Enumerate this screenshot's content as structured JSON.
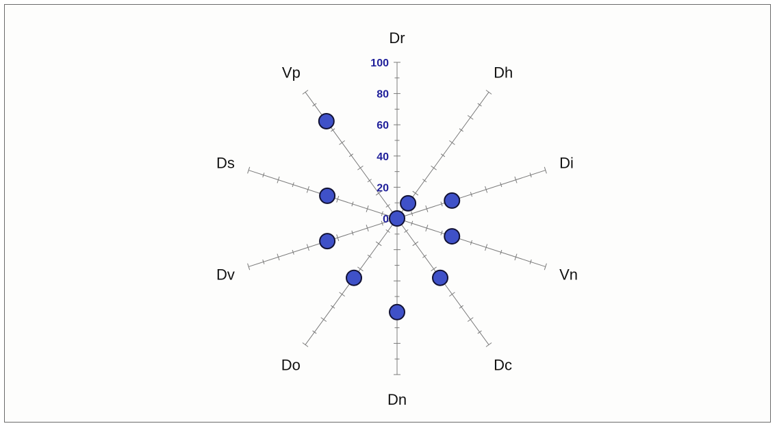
{
  "chart_data": {
    "type": "radar",
    "title": "",
    "axes": [
      "Dr",
      "Dh",
      "Di",
      "Vn",
      "Dc",
      "Dn",
      "Do",
      "Dv",
      "Ds",
      "Vp"
    ],
    "range": [
      0,
      100
    ],
    "tick_values": [
      0,
      20,
      40,
      60,
      80,
      100
    ],
    "tick_labels": [
      "0",
      "20",
      "40",
      "60",
      "80",
      "100"
    ],
    "values": [
      0,
      12,
      37,
      37,
      47,
      60,
      47,
      47,
      47,
      77
    ],
    "point_color": "#3f51c8",
    "axis_color": "#7a7a7a",
    "tick_label_color": "#1f1f9a",
    "grid": false,
    "legend": "none"
  }
}
